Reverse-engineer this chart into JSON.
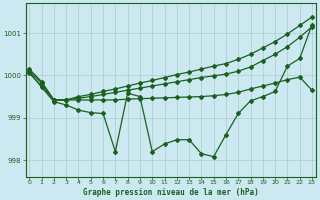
{
  "bg_color": "#cce8f0",
  "grid_color": "#aacccc",
  "line_color": "#1a6020",
  "xlabel": "Graphe pression niveau de la mer (hPa)",
  "xlim": [
    0,
    23
  ],
  "ylim": [
    997.6,
    1001.7
  ],
  "yticks": [
    998,
    999,
    1000,
    1001
  ],
  "xticks": [
    0,
    1,
    2,
    3,
    4,
    5,
    6,
    7,
    8,
    9,
    10,
    11,
    12,
    13,
    14,
    15,
    16,
    17,
    18,
    19,
    20,
    21,
    22,
    23
  ],
  "line_upper": [
    1000.15,
    999.85,
    999.42,
    999.42,
    999.5,
    999.55,
    999.62,
    999.68,
    999.75,
    999.82,
    999.88,
    999.95,
    1000.02,
    1000.08,
    1000.15,
    1000.22,
    1000.28,
    1000.38,
    1000.5,
    1000.65,
    1000.8,
    1000.98,
    1001.18,
    1001.38
  ],
  "line_upper2": [
    1000.1,
    999.82,
    999.42,
    999.42,
    999.46,
    999.5,
    999.55,
    999.6,
    999.65,
    999.7,
    999.75,
    999.8,
    999.85,
    999.9,
    999.95,
    999.99,
    1000.03,
    1000.1,
    1000.2,
    1000.35,
    1000.5,
    1000.68,
    1000.9,
    1001.15
  ],
  "line_flat": [
    1000.05,
    999.75,
    999.42,
    999.42,
    999.42,
    999.42,
    999.42,
    999.42,
    999.44,
    999.45,
    999.46,
    999.47,
    999.48,
    999.49,
    999.5,
    999.52,
    999.55,
    999.6,
    999.68,
    999.75,
    999.82,
    999.9,
    999.96,
    999.65
  ],
  "line_zigzag": [
    1000.08,
    999.72,
    999.38,
    999.3,
    999.18,
    999.12,
    999.1,
    998.2,
    999.58,
    999.5,
    998.2,
    998.38,
    998.48,
    998.48,
    998.15,
    998.08,
    998.6,
    999.1,
    999.4,
    999.5,
    999.62,
    1000.22,
    1000.4,
    1001.2
  ]
}
